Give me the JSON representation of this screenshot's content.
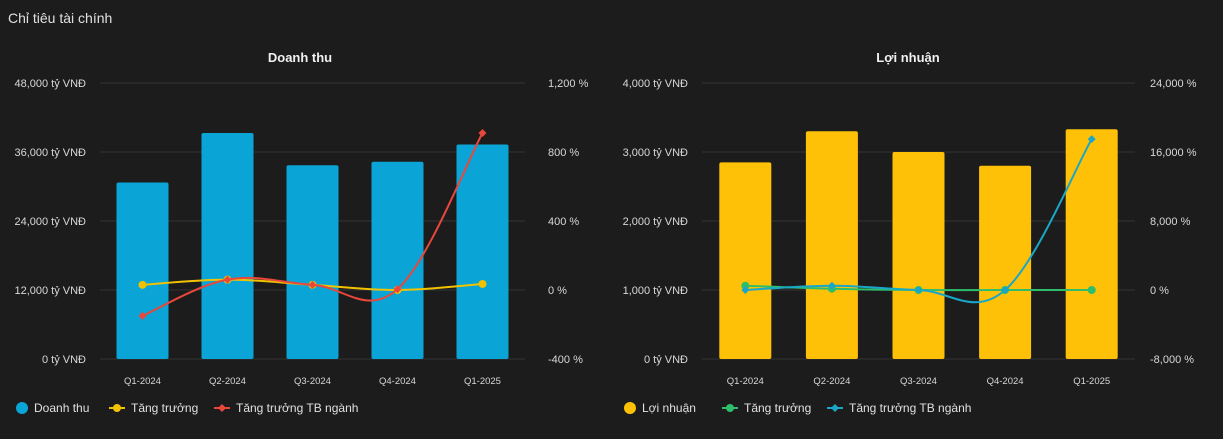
{
  "page": {
    "title": "Chỉ tiêu tài chính"
  },
  "chart_data": [
    {
      "type": "bar",
      "title": "Doanh thu",
      "categories": [
        "Q1-2024",
        "Q2-2024",
        "Q3-2024",
        "Q4-2024",
        "Q1-2025"
      ],
      "ylim": [
        0,
        48000
      ],
      "yticks": [
        "0 tỷ VNĐ",
        "12,000 tỷ VNĐ",
        "24,000 tỷ VNĐ",
        "36,000 tỷ VNĐ",
        "48,000 tỷ VNĐ"
      ],
      "y2lim": [
        -400,
        1200
      ],
      "y2ticks": [
        "-400 %",
        "0 %",
        "400 %",
        "800 %",
        "1,200 %"
      ],
      "grid": true,
      "legend_position": "bottom-left",
      "bar_series": {
        "name": "Doanh thu",
        "color": "#0aa5d6",
        "values": [
          30700,
          39300,
          33700,
          34300,
          37300
        ]
      },
      "line_series": [
        {
          "name": "Tăng trưởng",
          "color": "#f2c200",
          "values": [
            30,
            60,
            30,
            0,
            35
          ]
        },
        {
          "name": "Tăng trưởng TB ngành",
          "color": "#e8473c",
          "values": [
            -150,
            60,
            30,
            5,
            910
          ]
        }
      ]
    },
    {
      "type": "bar",
      "title": "Lợi nhuận",
      "categories": [
        "Q1-2024",
        "Q2-2024",
        "Q3-2024",
        "Q4-2024",
        "Q1-2025"
      ],
      "ylim": [
        0,
        4000
      ],
      "yticks": [
        "0 tỷ VNĐ",
        "1,000 tỷ VNĐ",
        "2,000 tỷ VNĐ",
        "3,000 tỷ VNĐ",
        "4,000 tỷ VNĐ"
      ],
      "y2lim": [
        -8000,
        24000
      ],
      "y2ticks": [
        "-8,000 %",
        "0 %",
        "8,000 %",
        "16,000 %",
        "24,000 %"
      ],
      "grid": true,
      "legend_position": "bottom-left",
      "bar_series": {
        "name": "Lợi nhuận",
        "color": "#ffc107",
        "values": [
          2850,
          3300,
          3000,
          2800,
          3330
        ]
      },
      "line_series": [
        {
          "name": "Tăng trưởng",
          "color": "#2ebd6b",
          "values": [
            500,
            150,
            0,
            0,
            0
          ]
        },
        {
          "name": "Tăng trưởng TB ngành",
          "color": "#1aa7c7",
          "values": [
            0,
            500,
            0,
            0,
            17500
          ]
        }
      ]
    }
  ]
}
